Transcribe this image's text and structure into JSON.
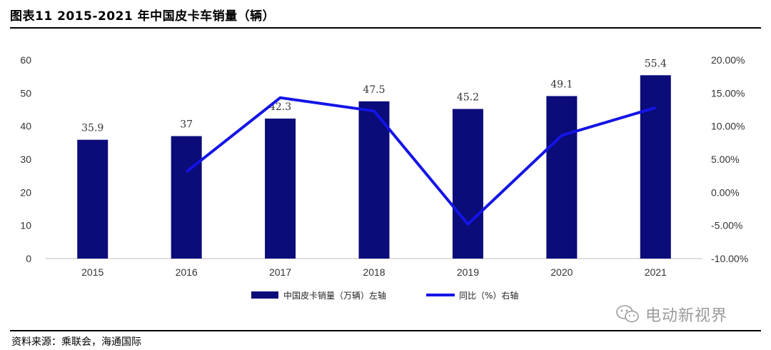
{
  "header": {
    "title": "图表11  2015-2021 年中国皮卡车销量（辆）"
  },
  "footer": {
    "source": "资料来源：乘联会，海通国际"
  },
  "watermark": {
    "text": "电动新视界",
    "icon": "wechat-icon"
  },
  "chart_data": {
    "type": "bar+line",
    "categories": [
      "2015",
      "2016",
      "2017",
      "2018",
      "2019",
      "2020",
      "2021"
    ],
    "series": [
      {
        "name": "中国皮卡销量（万辆）左轴",
        "type": "bar",
        "axis": "left",
        "values": [
          35.9,
          37,
          42.3,
          47.5,
          45.2,
          49.1,
          55.4
        ],
        "labels": [
          "35.9",
          "37",
          "42.3",
          "47.5",
          "45.2",
          "49.1",
          "55.4"
        ],
        "color": "#0b0b7a"
      },
      {
        "name": "同比（%）右轴",
        "type": "line",
        "axis": "right",
        "values": [
          null,
          3.1,
          14.3,
          12.3,
          -4.8,
          8.6,
          12.8
        ],
        "color": "#1414e6"
      }
    ],
    "left_axis": {
      "min": 0,
      "max": 60,
      "ticks": [
        "0",
        "10",
        "20",
        "30",
        "40",
        "50",
        "60"
      ]
    },
    "right_axis": {
      "min": -10,
      "max": 20,
      "ticks": [
        "-10.00%",
        "-5.00%",
        "0.00%",
        "5.00%",
        "10.00%",
        "15.00%",
        "20.00%"
      ]
    },
    "legend_position": "bottom",
    "grid": false
  }
}
